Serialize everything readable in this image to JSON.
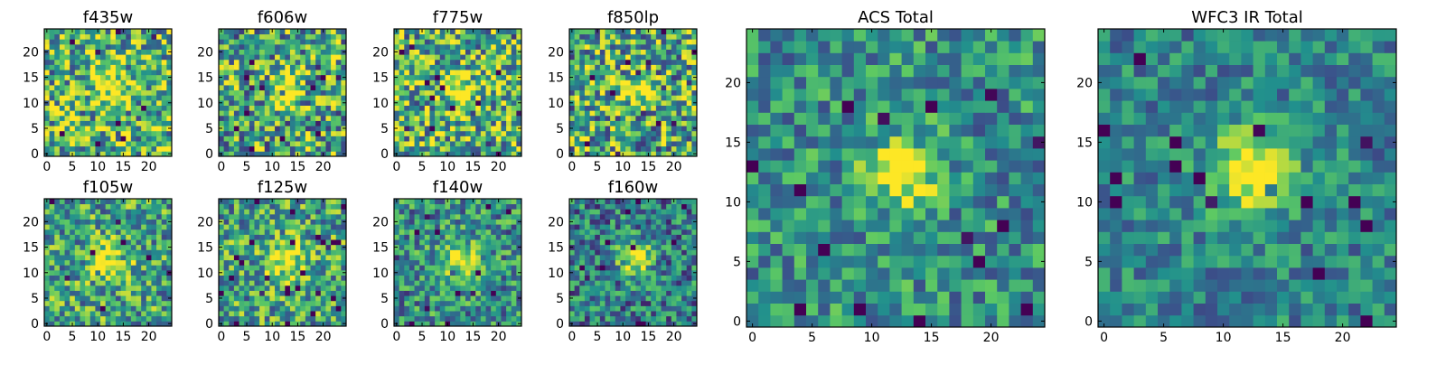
{
  "colormap": [
    "#440154",
    "#3b528b",
    "#21908d",
    "#5dc963",
    "#fde725"
  ],
  "panels": [
    {
      "id": "f435w",
      "title": "f435w",
      "xticks": [
        "0",
        "5",
        "10",
        "15",
        "20"
      ],
      "yticks": [
        "0",
        "5",
        "10",
        "15",
        "20"
      ],
      "noise": 0.55,
      "peak": 0.45,
      "sigma": 2.2,
      "cx": 12.5,
      "cy": 13.5,
      "base": 0.66,
      "seed": 11
    },
    {
      "id": "f606w",
      "title": "f606w",
      "xticks": [
        "0",
        "5",
        "10",
        "15",
        "20"
      ],
      "yticks": [
        "0",
        "5",
        "10",
        "15",
        "20"
      ],
      "noise": 0.55,
      "peak": 0.45,
      "sigma": 2.2,
      "cx": 12.5,
      "cy": 12.5,
      "base": 0.6,
      "seed": 23
    },
    {
      "id": "f775w",
      "title": "f775w",
      "xticks": [
        "0",
        "5",
        "10",
        "15",
        "20"
      ],
      "yticks": [
        "0",
        "5",
        "10",
        "15",
        "20"
      ],
      "noise": 0.55,
      "peak": 0.5,
      "sigma": 2.2,
      "cx": 12.5,
      "cy": 12.5,
      "base": 0.64,
      "seed": 37
    },
    {
      "id": "f850lp",
      "title": "f850lp",
      "xticks": [
        "0",
        "5",
        "10",
        "15",
        "20"
      ],
      "yticks": [
        "0",
        "5",
        "10",
        "15",
        "20"
      ],
      "noise": 0.55,
      "peak": 0.45,
      "sigma": 2.0,
      "cx": 12.5,
      "cy": 12.5,
      "base": 0.6,
      "seed": 41
    },
    {
      "id": "f105w",
      "title": "f105w",
      "xticks": [
        "0",
        "5",
        "10",
        "15",
        "20"
      ],
      "yticks": [
        "0",
        "5",
        "10",
        "15",
        "20"
      ],
      "noise": 0.45,
      "peak": 0.5,
      "sigma": 2.6,
      "cx": 12.5,
      "cy": 12.0,
      "base": 0.58,
      "seed": 53
    },
    {
      "id": "f125w",
      "title": "f125w",
      "xticks": [
        "0",
        "5",
        "10",
        "15",
        "20"
      ],
      "yticks": [
        "0",
        "5",
        "10",
        "15",
        "20"
      ],
      "noise": 0.45,
      "peak": 0.5,
      "sigma": 2.6,
      "cx": 12.5,
      "cy": 12.5,
      "base": 0.58,
      "seed": 67
    },
    {
      "id": "f140w",
      "title": "f140w",
      "xticks": [
        "0",
        "5",
        "10",
        "15",
        "20"
      ],
      "yticks": [
        "0",
        "5",
        "10",
        "15",
        "20"
      ],
      "noise": 0.4,
      "peak": 0.45,
      "sigma": 2.8,
      "cx": 12.5,
      "cy": 12.5,
      "base": 0.5,
      "seed": 79
    },
    {
      "id": "f160w",
      "title": "f160w",
      "xticks": [
        "0",
        "5",
        "10",
        "15",
        "20"
      ],
      "yticks": [
        "0",
        "5",
        "10",
        "15",
        "20"
      ],
      "noise": 0.4,
      "peak": 0.55,
      "sigma": 2.4,
      "cx": 12.5,
      "cy": 12.5,
      "base": 0.42,
      "seed": 97
    },
    {
      "id": "acs-total",
      "title": "ACS Total",
      "xticks": [
        "0",
        "5",
        "10",
        "15",
        "20"
      ],
      "yticks": [
        "0",
        "5",
        "10",
        "15",
        "20"
      ],
      "noise": 0.35,
      "peak": 0.6,
      "sigma": 2.0,
      "cx": 12.5,
      "cy": 12.5,
      "base": 0.5,
      "seed": 131
    },
    {
      "id": "wfc3-ir-total",
      "title": "WFC3 IR Total",
      "xticks": [
        "0",
        "5",
        "10",
        "15",
        "20"
      ],
      "yticks": [
        "0",
        "5",
        "10",
        "15",
        "20"
      ],
      "noise": 0.28,
      "peak": 0.6,
      "sigma": 2.5,
      "cx": 12.5,
      "cy": 12.5,
      "base": 0.45,
      "seed": 173
    }
  ]
}
